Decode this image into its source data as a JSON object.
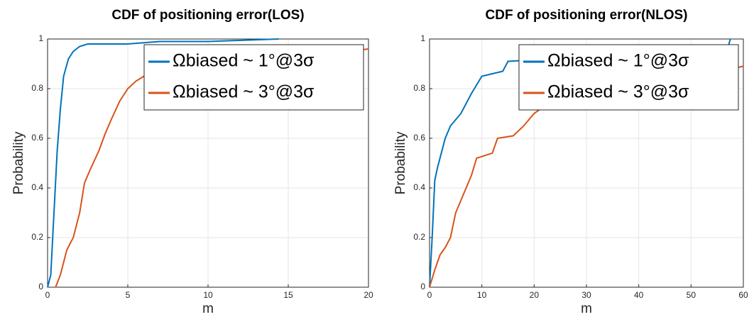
{
  "chart_data": [
    {
      "type": "line",
      "title": "CDF of positioning error(LOS)",
      "xlabel": "m",
      "ylabel": "Probability",
      "xlim": [
        0,
        20
      ],
      "xticks": [
        0,
        5,
        10,
        15,
        20
      ],
      "ylim": [
        0,
        1
      ],
      "yticks": [
        0,
        0.2,
        0.4,
        0.6,
        0.8,
        1
      ],
      "grid": true,
      "legend": "upper right",
      "series": [
        {
          "name": "Ωbiased ~ 1°@3σ",
          "color": "#0072bd",
          "x": [
            0,
            0.2,
            0.4,
            0.6,
            0.8,
            1,
            1.3,
            1.6,
            2,
            2.5,
            5,
            7,
            10,
            14.4
          ],
          "values": [
            0,
            0.05,
            0.3,
            0.55,
            0.72,
            0.85,
            0.92,
            0.95,
            0.97,
            0.98,
            0.98,
            0.99,
            0.99,
            1
          ]
        },
        {
          "name": "Ωbiased ~ 3°@3σ",
          "color": "#d95319",
          "x": [
            0.5,
            0.8,
            1.2,
            1.6,
            2,
            2.3,
            2.7,
            3.2,
            3.6,
            4,
            4.5,
            5,
            5.5,
            6,
            20
          ],
          "values": [
            0,
            0.05,
            0.15,
            0.2,
            0.3,
            0.42,
            0.48,
            0.55,
            0.62,
            0.68,
            0.75,
            0.8,
            0.83,
            0.85,
            0.96
          ]
        }
      ]
    },
    {
      "type": "line",
      "title": "CDF of positioning error(NLOS)",
      "xlabel": "m",
      "ylabel": "Probability",
      "xlim": [
        0,
        60
      ],
      "xticks": [
        0,
        10,
        20,
        30,
        40,
        50,
        60
      ],
      "ylim": [
        0,
        1
      ],
      "yticks": [
        0,
        0.2,
        0.4,
        0.6,
        0.8,
        1
      ],
      "grid": true,
      "legend": "upper right",
      "series": [
        {
          "name": "Ωbiased ~ 1°@3σ",
          "color": "#0072bd",
          "x": [
            0,
            0.5,
            1,
            1.5,
            3,
            4,
            6,
            8,
            10,
            14,
            15,
            57,
            57.5
          ],
          "values": [
            0,
            0.2,
            0.43,
            0.48,
            0.6,
            0.65,
            0.7,
            0.78,
            0.85,
            0.87,
            0.91,
            0.96,
            1
          ]
        },
        {
          "name": "Ωbiased ~ 3°@3σ",
          "color": "#d95319",
          "x": [
            0,
            1,
            2,
            3,
            4,
            5,
            6,
            7,
            8,
            9,
            12,
            13,
            16,
            18,
            20,
            22,
            60
          ],
          "values": [
            0,
            0.07,
            0.13,
            0.16,
            0.2,
            0.3,
            0.35,
            0.4,
            0.45,
            0.52,
            0.54,
            0.6,
            0.61,
            0.65,
            0.7,
            0.73,
            0.89
          ]
        }
      ]
    }
  ]
}
